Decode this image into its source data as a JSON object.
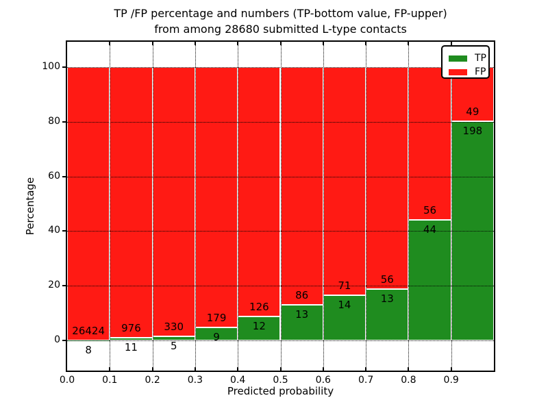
{
  "title_line1": "TP /FP percentage and numbers (TP-bottom value, FP-upper)",
  "title_line2": "from among 28680 submitted L-type contacts",
  "chart_data": {
    "type": "bar",
    "stacked": true,
    "normalized_to_percent": true,
    "title": "TP /FP percentage and numbers (TP-bottom value, FP-upper) from among 28680 submitted L-type contacts",
    "xlabel": "Predicted probability",
    "ylabel": "Percentage",
    "categories": [
      "0.0-0.1",
      "0.1-0.2",
      "0.2-0.3",
      "0.3-0.4",
      "0.4-0.5",
      "0.5-0.6",
      "0.6-0.7",
      "0.7-0.8",
      "0.8-0.9",
      "0.9-1.0"
    ],
    "x_tick_labels": [
      "0.0",
      "0.1",
      "0.2",
      "0.3",
      "0.4",
      "0.5",
      "0.6",
      "0.7",
      "0.8",
      "0.9"
    ],
    "y_ticks": [
      0,
      20,
      40,
      60,
      80,
      100
    ],
    "xlim": [
      0.0,
      1.0
    ],
    "ylim": [
      -11,
      110
    ],
    "grid": "dotted",
    "series": [
      {
        "name": "TP",
        "color": "#1f8c1f",
        "values": [
          8,
          11,
          5,
          9,
          12,
          13,
          14,
          13,
          44,
          198
        ]
      },
      {
        "name": "FP",
        "color": "#ff1a14",
        "values": [
          26424,
          976,
          330,
          179,
          126,
          86,
          71,
          56,
          56,
          49
        ]
      }
    ],
    "legend": {
      "position": "upper right",
      "entries": [
        "TP",
        "FP"
      ]
    }
  }
}
